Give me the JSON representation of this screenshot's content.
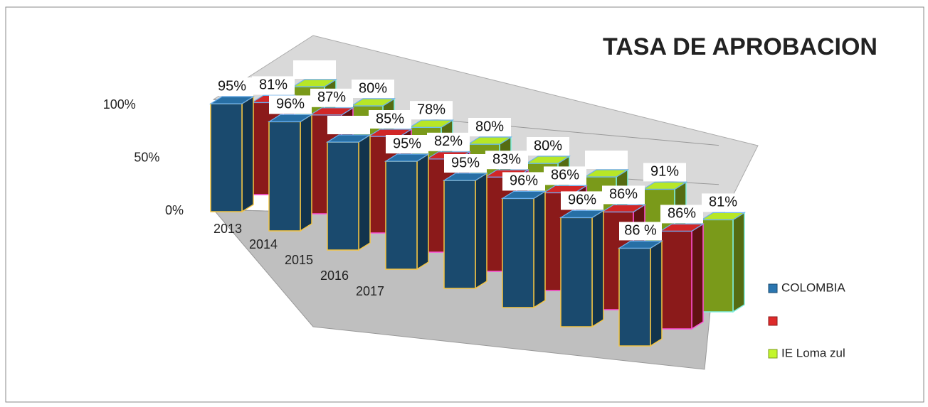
{
  "chart_data": {
    "type": "bar3d",
    "title": "TASA DE APROBACION",
    "categories": [
      "2013",
      "2014",
      "2015",
      "2016",
      "2017",
      null,
      null,
      null
    ],
    "series": [
      {
        "name": "COLOMBIA",
        "color": "#1a4a6e",
        "values": [
          95,
          96,
          95,
          95,
          95,
          96,
          96,
          86
        ],
        "value_labels": [
          "95%",
          "96%",
          null,
          "95%",
          "95%",
          "96%",
          "96%",
          "86 %"
        ]
      },
      {
        "name": null,
        "color": "#8b1a1a",
        "values": [
          81,
          87,
          85,
          82,
          83,
          86,
          86,
          86
        ],
        "value_labels": [
          "81%",
          "87%",
          "85%",
          "82%",
          "83%",
          "86%",
          "86%",
          "86%"
        ]
      },
      {
        "name": "IE Loma zul",
        "color": "#7a9a1a",
        "values": [
          80,
          80,
          78,
          80,
          80,
          85,
          91,
          81
        ],
        "value_labels": [
          null,
          "80%",
          "78%",
          "80%",
          "80%",
          null,
          "91%",
          "81%"
        ]
      }
    ],
    "ylim": [
      0,
      100
    ],
    "yticks": [
      {
        "value": 0,
        "label": "0%"
      },
      {
        "value": 50,
        "label": "50%"
      },
      {
        "value": 100,
        "label": "100%"
      }
    ],
    "grid": true
  }
}
